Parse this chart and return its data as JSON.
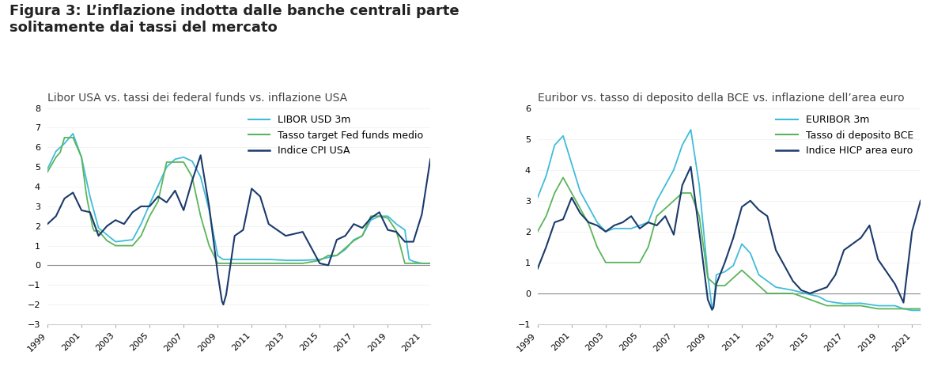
{
  "figure_title": "Figura 3: L’inflazione indotta dalle banche centrali parte\nsolitamente dai tassi del mercato",
  "left_subtitle": "Libor USA vs. tassi dei federal funds vs. inflazione USA",
  "right_subtitle": "Euribor vs. tasso di deposito della BCE vs. inflazione dell’area euro",
  "left_legend": [
    "LIBOR USD 3m",
    "Tasso target Fed funds medio",
    "Indice CPI USA"
  ],
  "right_legend": [
    "EURIBOR 3m",
    "Tasso di deposito BCE",
    "Indice HICP area euro"
  ],
  "left_ylim": [
    -3,
    8
  ],
  "right_ylim": [
    -1,
    6
  ],
  "left_yticks": [
    -3,
    -2,
    -1,
    0,
    1,
    2,
    3,
    4,
    5,
    6,
    7,
    8
  ],
  "right_yticks": [
    -1,
    0,
    1,
    2,
    3,
    4,
    5,
    6
  ],
  "colors_left": [
    "#40BCD8",
    "#5BB55A",
    "#1B3A6B"
  ],
  "colors_right": [
    "#40BCD8",
    "#5BB55A",
    "#1B3A6B"
  ],
  "background_color": "#ffffff",
  "zero_line_color": "#888888",
  "title_fontsize": 13,
  "subtitle_fontsize": 10,
  "tick_fontsize": 8,
  "legend_fontsize": 9
}
